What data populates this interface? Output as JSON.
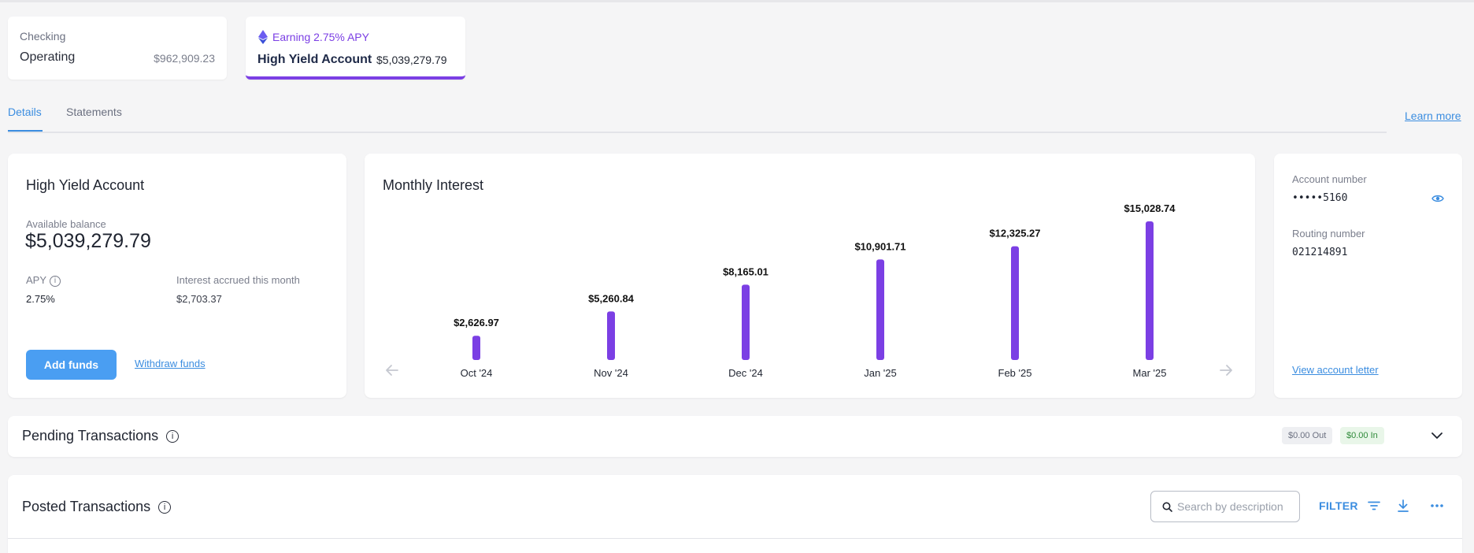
{
  "accounts": {
    "checking": {
      "type": "Checking",
      "name": "Operating",
      "balance": "$962,909.23"
    },
    "high_yield": {
      "earning": "Earning 2.75% APY",
      "name": "High Yield Account",
      "balance": "$5,039,279.79"
    }
  },
  "tabs": [
    {
      "label": "Details",
      "active": true
    },
    {
      "label": "Statements",
      "active": false
    }
  ],
  "learn_more": "Learn more",
  "summary": {
    "title": "High Yield Account",
    "available_label": "Available balance",
    "available_value": "$5,039,279.79",
    "apy_label": "APY",
    "apy_value": "2.75%",
    "interest_label": "Interest accrued this month",
    "interest_value": "$2,703.37",
    "add_funds": "Add funds",
    "withdraw_funds": "Withdraw funds"
  },
  "chart_title": "Monthly Interest",
  "chart_data": {
    "type": "bar",
    "title": "Monthly Interest",
    "categories": [
      "Oct '24",
      "Nov '24",
      "Dec '24",
      "Jan '25",
      "Feb '25",
      "Mar '25"
    ],
    "values": [
      2626.97,
      5260.84,
      8165.01,
      10901.71,
      12325.27,
      15028.74
    ],
    "labels": [
      "$2,626.97",
      "$5,260.84",
      "$8,165.01",
      "$10,901.71",
      "$12,325.27",
      "$15,028.74"
    ],
    "bar_color": "#7b3fe4",
    "grid": false
  },
  "account_details": {
    "account_number_label": "Account number",
    "account_number": "•••••5160",
    "routing_number_label": "Routing number",
    "routing_number": "021214891",
    "view_letter": "View account letter"
  },
  "pending": {
    "title": "Pending Transactions",
    "out": "$0.00 Out",
    "in": "$0.00 In"
  },
  "posted": {
    "title": "Posted Transactions",
    "search_placeholder": "Search by description",
    "filter_label": "FILTER"
  },
  "colors": {
    "accent": "#3b8de0",
    "purple": "#7b3fe4",
    "primary_button": "#4a9ef2"
  },
  "icons": [
    "ethereum-icon",
    "info-icon",
    "eye-icon",
    "arrow-left-icon",
    "arrow-right-icon",
    "chevron-down-icon",
    "search-icon",
    "filter-icon",
    "download-icon",
    "more-icon"
  ]
}
